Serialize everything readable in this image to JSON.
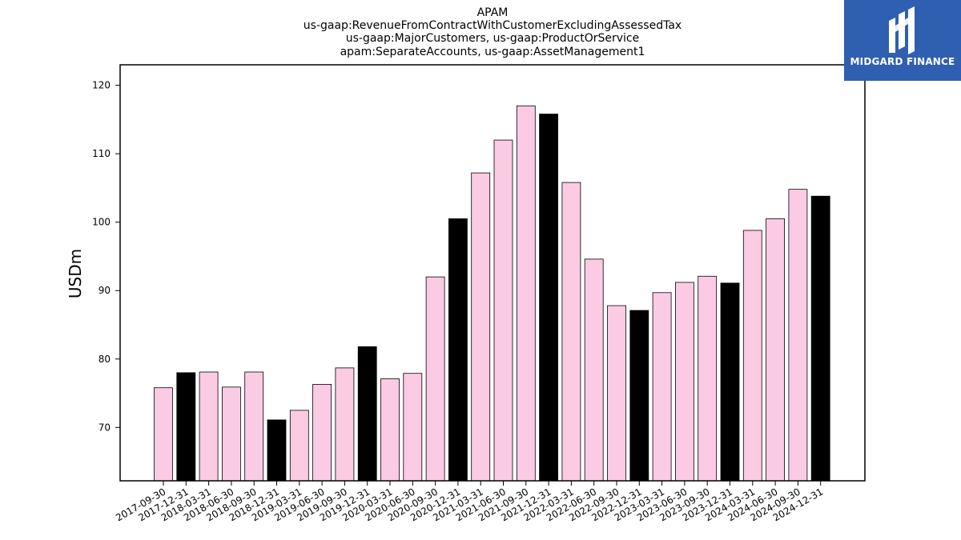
{
  "chart_data": {
    "type": "bar",
    "title": [
      "APAM",
      "us-gaap:RevenueFromContractWithCustomerExcludingAssessedTax",
      "us-gaap:MajorCustomers, us-gaap:ProductOrService",
      "apam:SeparateAccounts, us-gaap:AssetManagement1"
    ],
    "xlabel": "",
    "ylabel": "USDm",
    "ylim": [
      62.2,
      123
    ],
    "yticks": [
      70,
      80,
      90,
      100,
      110,
      120
    ],
    "grid": false,
    "colors": {
      "quarter": "#fbcbe4",
      "year_end": "#000000",
      "edge": "#000000"
    },
    "categories": [
      "2017-09-30",
      "2017-12-31",
      "2018-03-31",
      "2018-06-30",
      "2018-09-30",
      "2018-12-31",
      "2019-03-31",
      "2019-06-30",
      "2019-09-30",
      "2019-12-31",
      "2020-03-31",
      "2020-06-30",
      "2020-09-30",
      "2020-12-31",
      "2021-03-31",
      "2021-06-30",
      "2021-09-30",
      "2021-12-31",
      "2022-03-31",
      "2022-06-30",
      "2022-09-30",
      "2022-12-31",
      "2023-03-31",
      "2023-06-30",
      "2023-09-30",
      "2023-12-31",
      "2024-03-31",
      "2024-06-30",
      "2024-09-30",
      "2024-12-31"
    ],
    "values": [
      75.8,
      78.0,
      78.1,
      75.9,
      78.1,
      71.1,
      72.5,
      76.3,
      78.7,
      81.8,
      77.1,
      77.9,
      92.0,
      100.5,
      107.2,
      112.0,
      117.0,
      115.8,
      105.8,
      94.6,
      87.8,
      87.1,
      89.7,
      91.2,
      92.1,
      91.1,
      98.8,
      100.5,
      104.8,
      103.8
    ],
    "year_end": [
      false,
      true,
      false,
      false,
      false,
      true,
      false,
      false,
      false,
      true,
      false,
      false,
      false,
      true,
      false,
      false,
      false,
      true,
      false,
      false,
      false,
      true,
      false,
      false,
      false,
      true,
      false,
      false,
      false,
      true
    ]
  },
  "logo": {
    "text": "MIDGARD FINANCE",
    "color": "#2f5fb0"
  }
}
